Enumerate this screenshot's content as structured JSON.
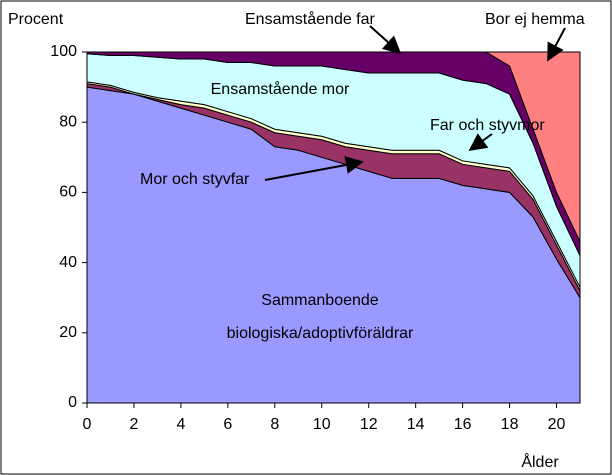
{
  "chart_data": {
    "type": "stacked_area",
    "ylabel": "Procent",
    "xlabel": "Ålder",
    "x": [
      0,
      1,
      2,
      3,
      4,
      5,
      6,
      7,
      8,
      9,
      10,
      11,
      12,
      13,
      14,
      15,
      16,
      17,
      18,
      19,
      20,
      21
    ],
    "xlim": [
      0,
      21
    ],
    "xticks": [
      0,
      2,
      4,
      6,
      8,
      10,
      12,
      14,
      16,
      18,
      20
    ],
    "ylim": [
      0,
      100
    ],
    "yticks": [
      0,
      20,
      40,
      60,
      80,
      100
    ],
    "series": [
      {
        "name": "Sammanboende biologiska/adoptivföräldrar",
        "color": "#9999ff",
        "values": [
          90,
          89,
          88,
          86,
          84,
          82,
          80,
          78,
          73,
          72,
          70,
          68,
          66,
          64,
          64,
          64,
          62,
          61,
          60,
          53,
          41,
          30
        ]
      },
      {
        "name": "Mor och styvfar",
        "color": "#993366",
        "values": [
          1,
          1,
          0,
          0.5,
          1,
          2,
          2,
          2,
          4,
          4,
          5,
          5,
          6,
          7,
          7,
          7,
          6,
          6,
          6,
          5,
          4,
          2
        ]
      },
      {
        "name": "Far och styvmor",
        "color": "#ffffcc",
        "values": [
          0.5,
          0.5,
          0.5,
          0.5,
          1,
          1,
          1,
          1,
          1,
          1,
          1,
          1,
          1,
          1,
          1,
          1,
          1,
          1,
          1,
          1,
          1,
          1
        ]
      },
      {
        "name": "Ensamstående mor",
        "color": "#ccffff",
        "values": [
          8,
          8.5,
          10.5,
          11.5,
          12,
          13,
          14,
          16,
          18,
          19,
          20,
          21,
          21,
          22,
          22,
          22,
          23,
          23,
          21,
          15,
          10,
          9
        ]
      },
      {
        "name": "Ensamstående far",
        "color": "#660066",
        "values": [
          0.5,
          1,
          1,
          1.5,
          2,
          2,
          3,
          3,
          4,
          4,
          4,
          5,
          6,
          6,
          6,
          6,
          8,
          9,
          8,
          4,
          4,
          4
        ]
      },
      {
        "name": "Bor ej hemma",
        "color": "#ff8080",
        "values": [
          0,
          0,
          0,
          0,
          0,
          0,
          0,
          0,
          0,
          0,
          0,
          0,
          0,
          0,
          0,
          0,
          0,
          0,
          4,
          22,
          40,
          54
        ]
      }
    ]
  }
}
